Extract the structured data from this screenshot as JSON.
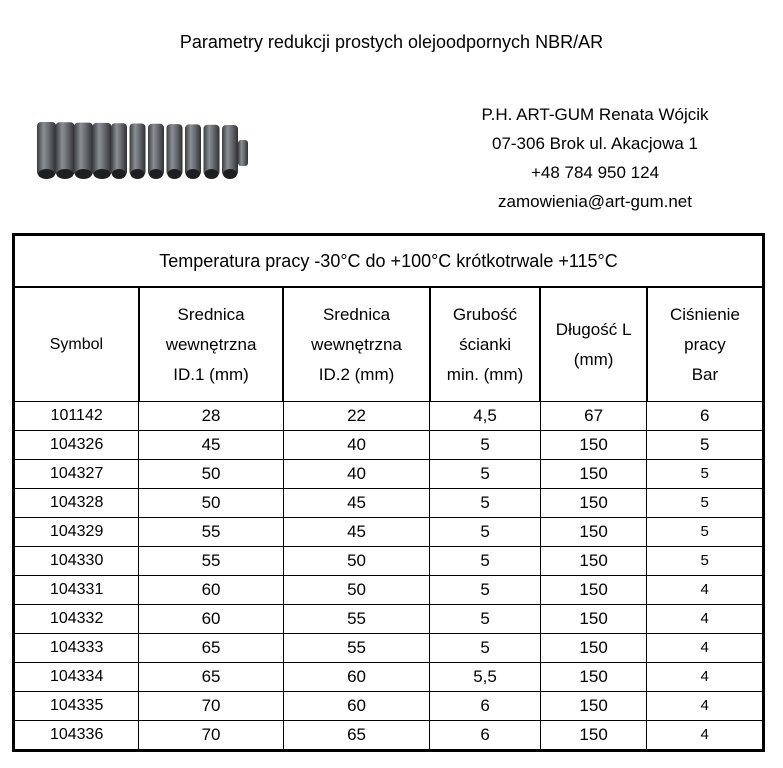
{
  "title": "Parametry redukcji prostych olejoodpornych NBR/AR",
  "company": {
    "name": "P.H. ART-GUM Renata Wójcik",
    "address": "07-306 Brok ul. Akacjowa 1",
    "phone": "+48 784 950 124",
    "email": "zamowienia@art-gum.net"
  },
  "table": {
    "caption": "Temperatura pracy -30°C do +100°C krótkotrwale +115°C",
    "headers": [
      [
        "Symbol"
      ],
      [
        "Srednica",
        "wewnętrzna",
        "ID.1 (mm)"
      ],
      [
        "Srednica",
        "wewnętrzna",
        "ID.2 (mm)"
      ],
      [
        "Grubość",
        "ścianki",
        "min. (mm)"
      ],
      [
        "Długość L",
        "(mm)"
      ],
      [
        "Ciśnienie",
        "pracy",
        "Bar"
      ]
    ],
    "rows": [
      [
        "101142",
        "28",
        "22",
        "4,5",
        "67",
        "6"
      ],
      [
        "104326",
        "45",
        "40",
        "5",
        "150",
        "5"
      ],
      [
        "104327",
        "50",
        "40",
        "5",
        "150",
        "5"
      ],
      [
        "104328",
        "50",
        "45",
        "5",
        "150",
        "5"
      ],
      [
        "104329",
        "55",
        "45",
        "5",
        "150",
        "5"
      ],
      [
        "104330",
        "55",
        "50",
        "5",
        "150",
        "5"
      ],
      [
        "104331",
        "60",
        "50",
        "5",
        "150",
        "4"
      ],
      [
        "104332",
        "60",
        "55",
        "5",
        "150",
        "4"
      ],
      [
        "104333",
        "65",
        "55",
        "5",
        "150",
        "4"
      ],
      [
        "104334",
        "65",
        "60",
        "5,5",
        "150",
        "4"
      ],
      [
        "104335",
        "70",
        "60",
        "6",
        "150",
        "4"
      ],
      [
        "104336",
        "70",
        "65",
        "6",
        "150",
        "4"
      ]
    ]
  }
}
